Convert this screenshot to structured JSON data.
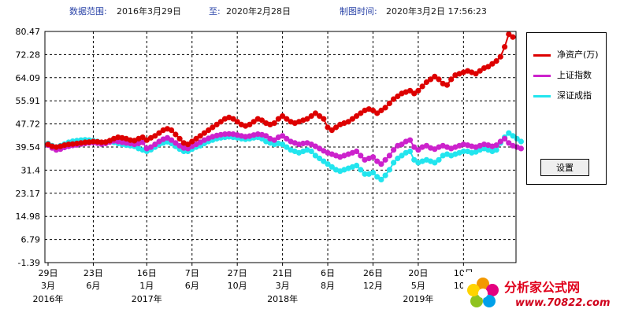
{
  "header": {
    "range_label": "数据范围:",
    "range_start": "2016年3月29日",
    "range_to_label": "至:",
    "range_end": "2020年2月28日",
    "made_label": "制图时间:",
    "made_time": "2020年3月2日 17:56:23"
  },
  "legend": {
    "items": [
      {
        "label": "净资产(万)",
        "color": "#dd0000"
      },
      {
        "label": "上证指数",
        "color": "#cc22cc"
      },
      {
        "label": "深证成指",
        "color": "#22e5ee"
      }
    ]
  },
  "settings_button": "设置",
  "watermark": {
    "title": "分析家公式网",
    "url": "www.70822.com"
  },
  "chart_data": {
    "type": "line",
    "y_ticks": [
      "80.47",
      "72.28",
      "64.09",
      "55.91",
      "47.72",
      "39.54",
      "31.4",
      "23.17",
      "14.98",
      "6.79",
      "-1.39"
    ],
    "ylim": [
      -1.39,
      80.47
    ],
    "grid": true,
    "x_ticks": [
      {
        "day": "29日",
        "month": "3月",
        "year": "2016年"
      },
      {
        "day": "23日",
        "month": "6月",
        "year": ""
      },
      {
        "day": "16日",
        "month": "1月",
        "year": "2017年"
      },
      {
        "day": "7日",
        "month": "6月",
        "year": ""
      },
      {
        "day": "27日",
        "month": "10月",
        "year": ""
      },
      {
        "day": "21日",
        "month": "3月",
        "year": "2018年"
      },
      {
        "day": "6日",
        "month": "8月",
        "year": ""
      },
      {
        "day": "26日",
        "month": "12月",
        "year": ""
      },
      {
        "day": "20日",
        "month": "5月",
        "year": "2019年"
      },
      {
        "day": "10日",
        "month": "10月",
        "year": ""
      }
    ],
    "x_tick_index": [
      0,
      11,
      24,
      35,
      46,
      57,
      68,
      79,
      90,
      101
    ],
    "series": [
      {
        "name": "净资产(万)",
        "color": "#dd0000",
        "values": [
          40.5,
          39.8,
          39.5,
          39.8,
          40.2,
          40.5,
          40.6,
          40.8,
          41.0,
          41.2,
          41.3,
          41.5,
          41.4,
          41.2,
          41.3,
          41.8,
          42.5,
          43.0,
          42.8,
          42.5,
          42.0,
          41.8,
          42.5,
          43.0,
          42.0,
          42.8,
          43.5,
          44.5,
          45.5,
          46.0,
          45.5,
          44.0,
          42.5,
          41.0,
          40.5,
          41.5,
          42.5,
          43.5,
          44.5,
          45.5,
          46.5,
          47.5,
          48.5,
          49.5,
          50.0,
          49.5,
          48.5,
          47.5,
          47.0,
          47.5,
          48.5,
          49.5,
          49.0,
          48.0,
          47.5,
          48.0,
          49.5,
          50.5,
          49.5,
          48.5,
          48.0,
          48.5,
          49.0,
          49.5,
          50.5,
          51.5,
          50.5,
          49.5,
          46.5,
          45.5,
          46.5,
          47.5,
          48.0,
          48.5,
          49.5,
          50.5,
          51.5,
          52.5,
          53.0,
          52.5,
          51.5,
          52.5,
          53.5,
          55.0,
          56.5,
          57.5,
          58.5,
          59.0,
          59.5,
          58.5,
          59.5,
          61.0,
          62.5,
          63.5,
          64.5,
          63.5,
          62.0,
          61.5,
          63.5,
          65.0,
          65.5,
          66.0,
          66.5,
          66.0,
          65.5,
          66.5,
          67.5,
          68.0,
          69.0,
          70.0,
          71.5,
          75.0,
          79.5,
          78.5
        ]
      },
      {
        "name": "上证指数",
        "color": "#cc22cc",
        "values": [
          40.2,
          39.2,
          38.5,
          38.8,
          39.4,
          39.8,
          40.1,
          40.3,
          40.6,
          40.8,
          41.0,
          41.1,
          40.9,
          40.6,
          40.8,
          41.3,
          41.7,
          41.5,
          41.2,
          41.0,
          40.8,
          40.5,
          40.8,
          41.2,
          39.0,
          39.5,
          40.5,
          41.5,
          42.3,
          42.8,
          42.0,
          41.0,
          40.0,
          39.2,
          39.0,
          39.8,
          40.5,
          41.2,
          42.0,
          42.6,
          43.2,
          43.6,
          43.9,
          44.1,
          44.2,
          44.1,
          43.8,
          43.5,
          43.2,
          43.4,
          43.8,
          44.1,
          43.9,
          43.5,
          42.5,
          42.0,
          43.0,
          43.5,
          42.5,
          41.5,
          41.0,
          40.5,
          40.8,
          41.0,
          40.5,
          39.8,
          39.0,
          38.2,
          37.5,
          37.0,
          36.5,
          36.0,
          36.5,
          37.0,
          37.5,
          38.0,
          36.5,
          35.0,
          35.5,
          36.0,
          34.5,
          33.5,
          35.0,
          36.5,
          38.5,
          40.0,
          40.5,
          41.5,
          42.0,
          39.5,
          38.5,
          39.5,
          40.0,
          39.2,
          38.8,
          39.5,
          40.0,
          39.5,
          39.0,
          39.5,
          40.0,
          40.5,
          40.2,
          39.8,
          39.5,
          40.0,
          40.5,
          40.2,
          39.8,
          40.2,
          41.5,
          42.5,
          41.0,
          40.0,
          39.5,
          39.0
        ]
      },
      {
        "name": "深证成指",
        "color": "#22e5ee",
        "values": [
          40.8,
          40.0,
          39.5,
          40.0,
          40.6,
          41.2,
          41.6,
          41.8,
          42.0,
          42.1,
          42.0,
          41.8,
          41.5,
          41.0,
          41.2,
          41.4,
          41.2,
          40.8,
          40.5,
          40.2,
          40.0,
          39.8,
          39.0,
          38.5,
          38.0,
          38.6,
          39.5,
          40.5,
          41.0,
          41.4,
          40.8,
          39.8,
          38.8,
          38.0,
          38.0,
          38.8,
          39.5,
          40.0,
          40.8,
          41.5,
          42.0,
          42.5,
          42.8,
          43.0,
          43.2,
          43.0,
          42.8,
          42.5,
          42.3,
          42.5,
          42.8,
          43.0,
          42.5,
          41.5,
          41.0,
          40.5,
          40.8,
          40.5,
          39.5,
          38.5,
          38.0,
          37.5,
          38.0,
          38.5,
          38.0,
          36.5,
          35.5,
          34.5,
          33.5,
          32.5,
          31.5,
          31.0,
          31.5,
          32.0,
          32.5,
          33.0,
          31.5,
          30.0,
          30.0,
          30.5,
          29.0,
          28.0,
          29.5,
          31.5,
          34.0,
          35.5,
          36.5,
          37.5,
          38.0,
          35.0,
          34.0,
          34.5,
          35.0,
          34.5,
          34.0,
          35.0,
          36.5,
          37.0,
          36.5,
          37.0,
          37.5,
          38.0,
          38.0,
          37.5,
          37.8,
          38.5,
          39.0,
          38.5,
          38.0,
          38.5,
          41.0,
          43.0,
          44.5,
          43.5,
          42.5,
          41.5
        ]
      }
    ]
  }
}
